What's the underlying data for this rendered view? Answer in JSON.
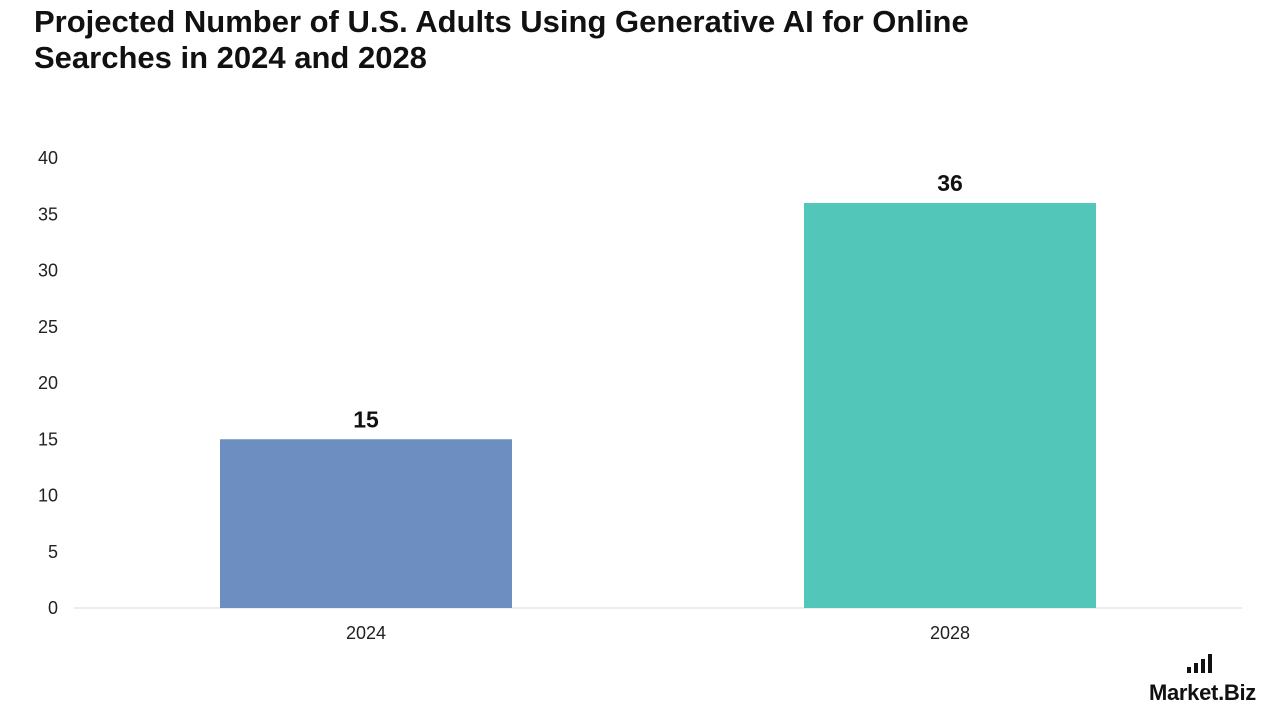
{
  "title": "Projected Number of U.S. Adults Using Generative AI for Online Searches in 2024 and 2028",
  "brand": {
    "text_main": "Market",
    "text_suffix": ".Biz"
  },
  "chart_data": {
    "type": "bar",
    "title": "Projected Number of U.S. Adults Using Generative AI for Online Searches in 2024 and 2028",
    "categories": [
      "2024",
      "2028"
    ],
    "values": [
      15,
      36
    ],
    "bar_colors": [
      "#6d8ec1",
      "#52c6b9"
    ],
    "axis_color": "#d9d9d9",
    "ylim": [
      0,
      40
    ],
    "yticks": [
      0,
      5,
      10,
      15,
      20,
      25,
      30,
      35,
      40
    ],
    "grid": false,
    "data_labels": [
      "15",
      "36"
    ],
    "xlabel": "",
    "ylabel": ""
  }
}
